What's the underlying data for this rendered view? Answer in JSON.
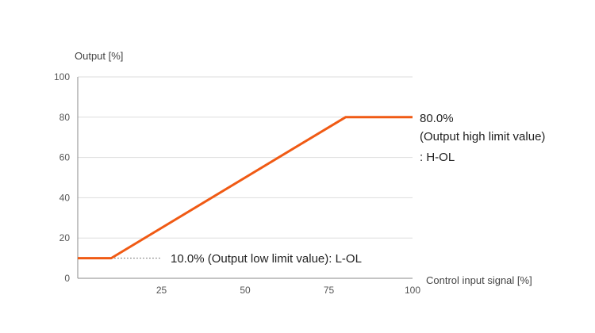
{
  "chart_data": {
    "type": "line",
    "ylabel": "Output [%]",
    "xlabel": "Control input signal [%]",
    "xlim": [
      0,
      100
    ],
    "ylim": [
      0,
      100
    ],
    "xticks": [
      "25",
      "50",
      "75",
      "100"
    ],
    "yticks": [
      "0",
      "20",
      "40",
      "60",
      "80",
      "100"
    ],
    "grid": "horizontal",
    "series": [
      {
        "x": [
          0,
          10,
          80,
          100
        ],
        "y": [
          10,
          10,
          80,
          80
        ]
      }
    ],
    "annotations": {
      "high_value": "80.0%",
      "high_desc": "(Output high limit value)",
      "high_code": ": H-OL",
      "low_text": "10.0% (Output low limit value)",
      "low_code": ": L-OL"
    },
    "colors": {
      "line": "#f05a14",
      "grid": "#dddddd",
      "axis": "#888888"
    }
  }
}
